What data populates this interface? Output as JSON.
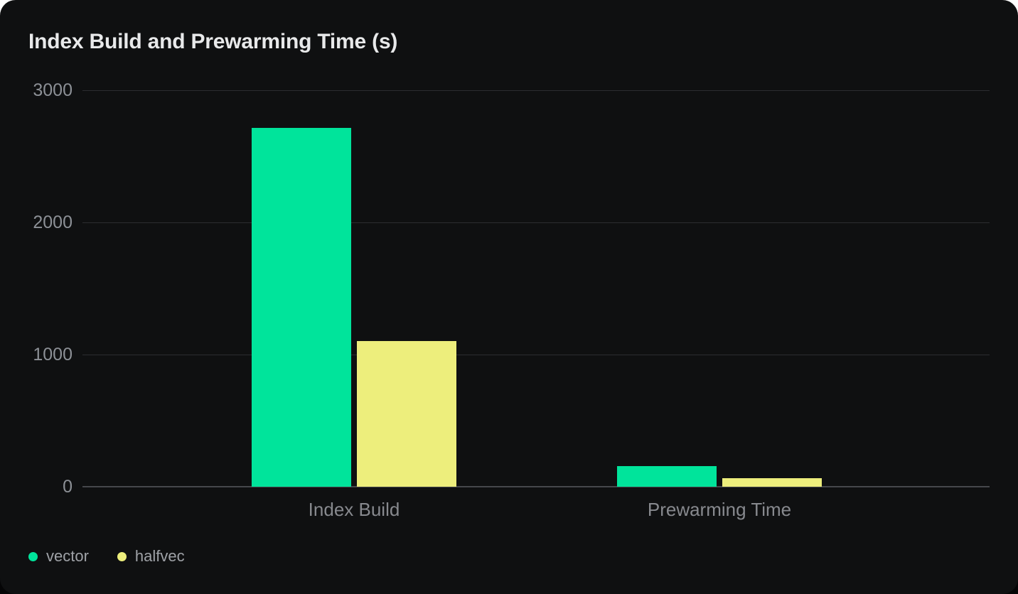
{
  "page": {
    "colors": {
      "page_behind_top": "#FFFFFF",
      "page_behind_bottom": "#050506",
      "card_background": "#0F1011",
      "grid_line": "#2C2D30",
      "axis_baseline": "#45474B",
      "title_text": "#E8E9EA",
      "tick_text": "#8C9096",
      "category_text": "#87898E",
      "legend_text": "#9FA2A7"
    }
  },
  "chart_data": {
    "type": "bar",
    "title": "Index Build and Prewarming Time (s)",
    "categories": [
      "Index Build",
      "Prewarming Time"
    ],
    "series": [
      {
        "name": "vector",
        "color": "#00E49B",
        "values": [
          2715,
          155
        ]
      },
      {
        "name": "halfvec",
        "color": "#EDEE7C",
        "values": [
          1100,
          65
        ]
      }
    ],
    "ylim": [
      0,
      3000
    ],
    "yticks": [
      3000,
      2000,
      1000,
      0
    ],
    "xlabel": "",
    "ylabel": "",
    "unit": "s",
    "grid": "horizontal",
    "legend_position": "bottom-left"
  }
}
